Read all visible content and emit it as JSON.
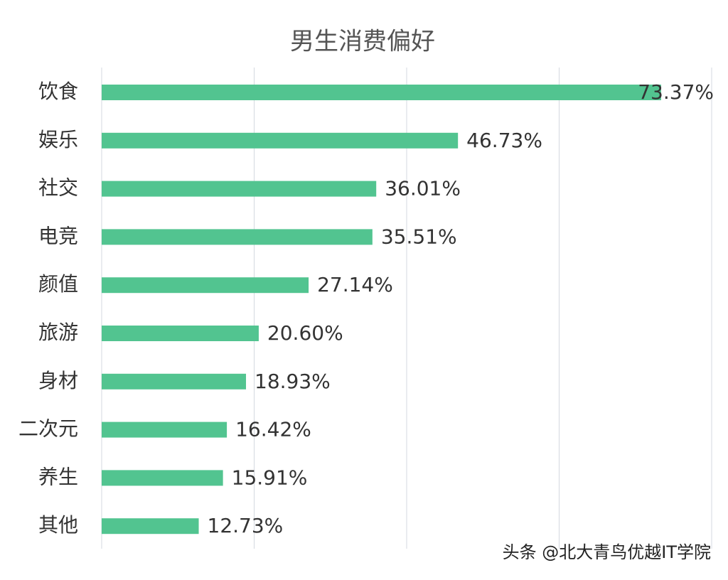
{
  "chart_data": {
    "type": "bar",
    "orientation": "horizontal",
    "title": "男生消费偏好",
    "categories": [
      "饮食",
      "娱乐",
      "社交",
      "电竞",
      "颜值",
      "旅游",
      "身材",
      "二次元",
      "养生",
      "其他"
    ],
    "values": [
      73.37,
      46.73,
      36.01,
      35.51,
      27.14,
      20.6,
      18.93,
      16.42,
      15.91,
      12.73
    ],
    "value_labels": [
      "73.37%",
      "46.73%",
      "36.01%",
      "35.51%",
      "27.14%",
      "20.60%",
      "18.93%",
      "16.42%",
      "15.91%",
      "12.73%"
    ],
    "color": "#52c490",
    "xlim": [
      0,
      80
    ],
    "xticks": [
      0,
      20,
      40,
      60,
      80
    ],
    "grid": true,
    "watermark": "头条 @北大青鸟优越IT学院"
  }
}
